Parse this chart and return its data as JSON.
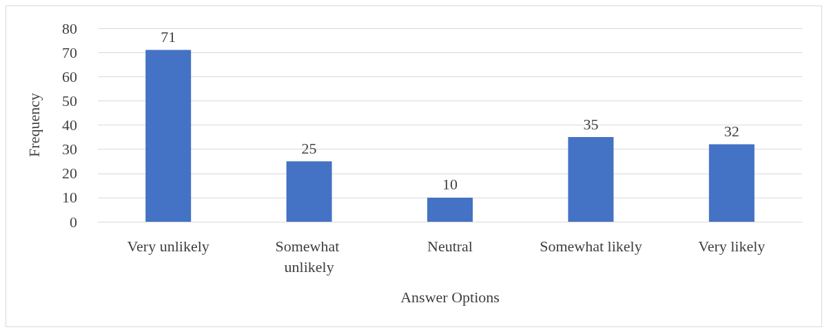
{
  "chart_data": {
    "type": "bar",
    "xlabel": "Answer Options",
    "ylabel": "Frequency",
    "categories": [
      "Very unlikely",
      "Somewhat unlikely",
      "Neutral",
      "Somewhat likely",
      "Very likely"
    ],
    "values": [
      71,
      25,
      10,
      35,
      32
    ],
    "color": "#4472c4",
    "ylim": [
      0,
      80
    ],
    "yticks": [
      0,
      10,
      20,
      30,
      40,
      50,
      60,
      70,
      80
    ],
    "grid": "y",
    "data_labels": true
  }
}
